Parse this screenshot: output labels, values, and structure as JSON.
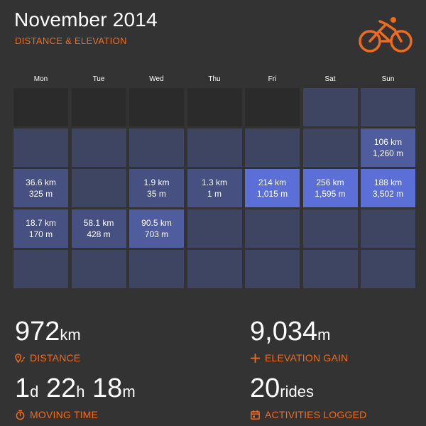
{
  "header": {
    "title": "November 2014",
    "subtitle": "DISTANCE & ELEVATION"
  },
  "icons": {
    "logo": "bicycle-rider-icon",
    "distance": "route-pin-icon",
    "elevation": "plus-icon",
    "moving_time": "stopwatch-icon",
    "activities": "calendar-icon"
  },
  "colors": {
    "accent": "#f26b1d",
    "background": "#333333",
    "cell_empty": "#2b2b2b",
    "cell_low": "#3d4563",
    "cell_mid": "#4f5c9d",
    "cell_high": "#5c6fd6"
  },
  "calendar": {
    "weekdays": [
      "Mon",
      "Tue",
      "Wed",
      "Thu",
      "Fri",
      "Sat",
      "Sun"
    ],
    "weeks": [
      [
        {
          "type": "empty",
          "km": "",
          "m": ""
        },
        {
          "type": "empty",
          "km": "",
          "m": ""
        },
        {
          "type": "empty",
          "km": "",
          "m": ""
        },
        {
          "type": "empty",
          "km": "",
          "m": ""
        },
        {
          "type": "empty",
          "km": "",
          "m": ""
        },
        {
          "type": "s0",
          "km": "",
          "m": ""
        },
        {
          "type": "s0",
          "km": "",
          "m": ""
        }
      ],
      [
        {
          "type": "s0",
          "km": "",
          "m": ""
        },
        {
          "type": "s0",
          "km": "",
          "m": ""
        },
        {
          "type": "s0",
          "km": "",
          "m": ""
        },
        {
          "type": "s0",
          "km": "",
          "m": ""
        },
        {
          "type": "s0",
          "km": "",
          "m": ""
        },
        {
          "type": "s0",
          "km": "",
          "m": ""
        },
        {
          "type": "s2",
          "km": "106 km",
          "m": "1,260 m"
        }
      ],
      [
        {
          "type": "s1",
          "km": "36.6 km",
          "m": "325 m"
        },
        {
          "type": "s0",
          "km": "",
          "m": ""
        },
        {
          "type": "s1",
          "km": "1.9 km",
          "m": "35 m"
        },
        {
          "type": "s1",
          "km": "1.3 km",
          "m": "1 m"
        },
        {
          "type": "s3",
          "km": "214 km",
          "m": "1,015 m"
        },
        {
          "type": "s3",
          "km": "256 km",
          "m": "1,595 m"
        },
        {
          "type": "s3",
          "km": "188 km",
          "m": "3,502 m"
        }
      ],
      [
        {
          "type": "s1",
          "km": "18.7 km",
          "m": "170 m"
        },
        {
          "type": "s1",
          "km": "58.1 km",
          "m": "428 m"
        },
        {
          "type": "s2",
          "km": "90.5 km",
          "m": "703 m"
        },
        {
          "type": "s0",
          "km": "",
          "m": ""
        },
        {
          "type": "s0",
          "km": "",
          "m": ""
        },
        {
          "type": "s0",
          "km": "",
          "m": ""
        },
        {
          "type": "s0",
          "km": "",
          "m": ""
        }
      ],
      [
        {
          "type": "s0",
          "km": "",
          "m": ""
        },
        {
          "type": "s0",
          "km": "",
          "m": ""
        },
        {
          "type": "s0",
          "km": "",
          "m": ""
        },
        {
          "type": "s0",
          "km": "",
          "m": ""
        },
        {
          "type": "s0",
          "km": "",
          "m": ""
        },
        {
          "type": "s0",
          "km": "",
          "m": ""
        },
        {
          "type": "s0",
          "km": "",
          "m": ""
        }
      ]
    ]
  },
  "stats": {
    "distance": {
      "value": "972",
      "unit": "km",
      "label": "DISTANCE"
    },
    "elevation": {
      "value": "9,034",
      "unit": "m",
      "label": "ELEVATION GAIN"
    },
    "moving_time": {
      "d": "1",
      "d_unit": "d",
      "h": "22",
      "h_unit": "h",
      "m": "18",
      "m_unit": "m",
      "label": "MOVING TIME"
    },
    "activities": {
      "value": "20",
      "unit": "rides",
      "label": "ACTIVITIES LOGGED"
    }
  }
}
